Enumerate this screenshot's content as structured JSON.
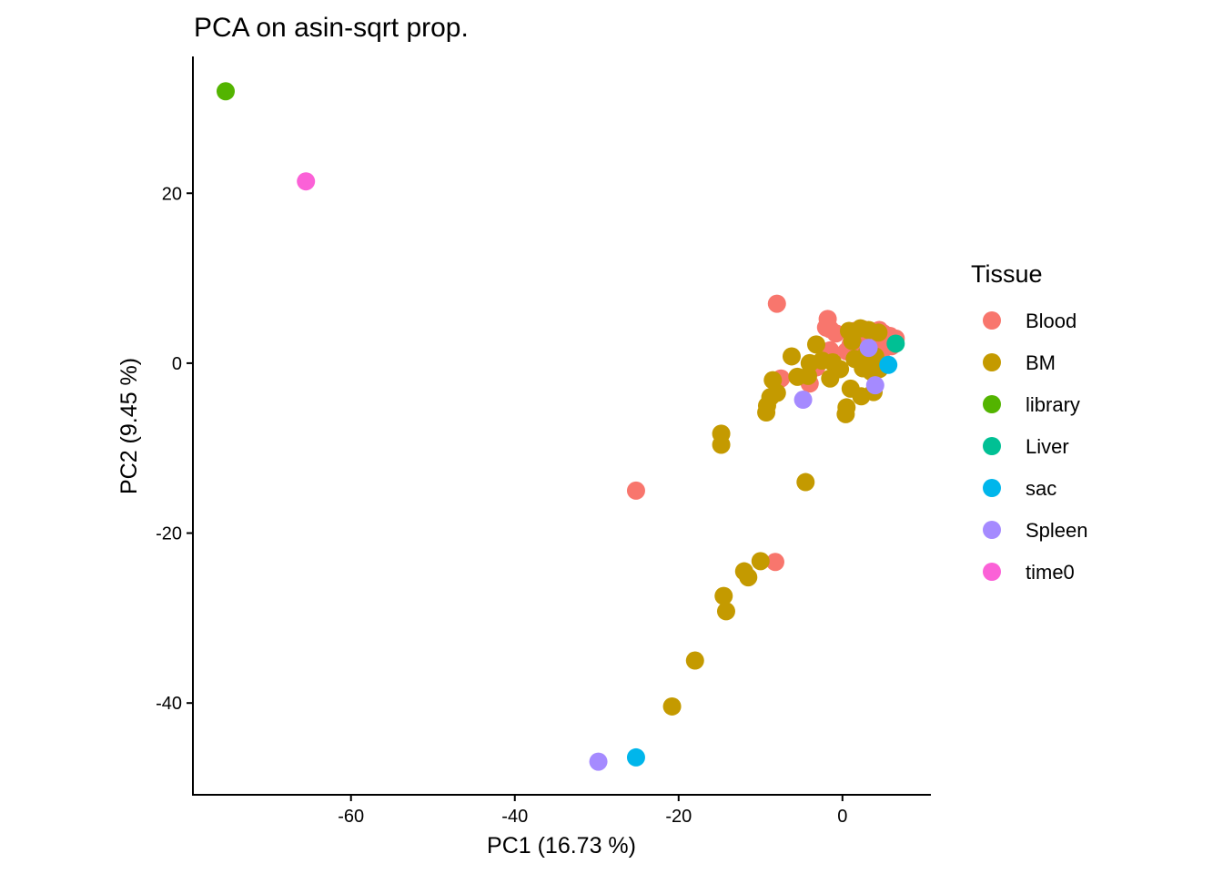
{
  "chart_data": {
    "type": "scatter",
    "title": "PCA on asin-sqrt prop.",
    "xlabel": "PC1 (16.73 %)",
    "ylabel": "PC2 (9.45 %)",
    "xlim": [
      -79.3,
      10.8
    ],
    "ylim": [
      -50.8,
      36.1
    ],
    "xticks": [
      -60,
      -40,
      -20,
      0
    ],
    "yticks": [
      -40,
      -20,
      0,
      20
    ],
    "grid": false,
    "legend": {
      "title": "Tissue",
      "position": "right"
    },
    "series": [
      {
        "name": "Blood",
        "color": "#F8766D",
        "points": [
          [
            -8.0,
            7.0
          ],
          [
            -1.8,
            5.2
          ],
          [
            -1.5,
            4.0
          ],
          [
            -0.8,
            3.5
          ],
          [
            -2.0,
            4.2
          ],
          [
            1.5,
            3.8
          ],
          [
            2.5,
            4.0
          ],
          [
            3.5,
            3.6
          ],
          [
            4.5,
            3.9
          ],
          [
            5.0,
            3.5
          ],
          [
            5.8,
            3.2
          ],
          [
            6.5,
            2.9
          ],
          [
            3.0,
            2.5
          ],
          [
            4.0,
            2.0
          ],
          [
            5.2,
            1.8
          ],
          [
            1.0,
            2.2
          ],
          [
            -1.5,
            1.5
          ],
          [
            2.0,
            1.0
          ],
          [
            -7.5,
            -1.8
          ],
          [
            -4.0,
            -2.4
          ],
          [
            -3.2,
            -0.5
          ],
          [
            -25.2,
            -15.0
          ],
          [
            -8.2,
            -23.4
          ],
          [
            0.5,
            1.4
          ],
          [
            6.0,
            2.0
          ]
        ]
      },
      {
        "name": "BM",
        "color": "#C49A00",
        "points": [
          [
            0.8,
            3.8
          ],
          [
            2.2,
            4.1
          ],
          [
            3.2,
            3.9
          ],
          [
            4.4,
            3.6
          ],
          [
            1.2,
            2.6
          ],
          [
            -3.2,
            2.2
          ],
          [
            -6.2,
            0.8
          ],
          [
            -4.0,
            0.0
          ],
          [
            -2.5,
            0.3
          ],
          [
            -1.2,
            0.1
          ],
          [
            -0.3,
            -0.7
          ],
          [
            1.5,
            0.5
          ],
          [
            2.5,
            -0.6
          ],
          [
            3.5,
            -1.0
          ],
          [
            4.5,
            -0.7
          ],
          [
            -4.2,
            -1.5
          ],
          [
            -5.5,
            -1.6
          ],
          [
            -8.5,
            -2.0
          ],
          [
            -8.0,
            -3.5
          ],
          [
            -8.8,
            -4.0
          ],
          [
            -9.2,
            -5.0
          ],
          [
            -9.3,
            -5.8
          ],
          [
            -1.5,
            -1.8
          ],
          [
            0.5,
            -5.2
          ],
          [
            0.4,
            -6.0
          ],
          [
            1.0,
            -3.0
          ],
          [
            2.3,
            -3.9
          ],
          [
            3.8,
            -3.4
          ],
          [
            3.0,
            1.2
          ],
          [
            4.0,
            0.8
          ],
          [
            -14.8,
            -8.3
          ],
          [
            -14.8,
            -9.6
          ],
          [
            -4.5,
            -14.0
          ],
          [
            -10.0,
            -23.3
          ],
          [
            -12.0,
            -24.5
          ],
          [
            -11.5,
            -25.2
          ],
          [
            -14.5,
            -27.4
          ],
          [
            -14.2,
            -29.2
          ],
          [
            -18.0,
            -35.0
          ],
          [
            -20.8,
            -40.4
          ]
        ]
      },
      {
        "name": "library",
        "color": "#53B400",
        "points": [
          [
            -75.3,
            32.0
          ]
        ]
      },
      {
        "name": "Liver",
        "color": "#00C094",
        "points": [
          [
            6.5,
            2.3
          ]
        ]
      },
      {
        "name": "sac",
        "color": "#00B6EB",
        "points": [
          [
            5.6,
            -0.2
          ],
          [
            -25.2,
            -46.4
          ]
        ]
      },
      {
        "name": "Spleen",
        "color": "#A58AFF",
        "points": [
          [
            3.2,
            1.8
          ],
          [
            -4.8,
            -4.3
          ],
          [
            4.0,
            -2.6
          ],
          [
            -29.8,
            -46.9
          ]
        ]
      },
      {
        "name": "time0",
        "color": "#FB61D7",
        "points": [
          [
            -65.5,
            21.4
          ]
        ]
      }
    ]
  }
}
